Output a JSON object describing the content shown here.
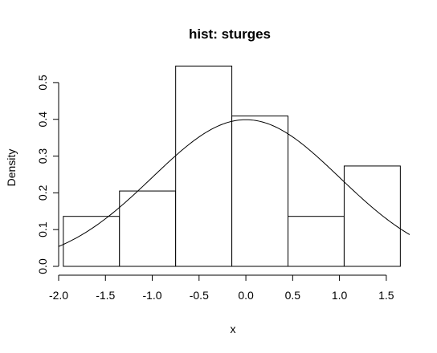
{
  "chart_data": {
    "type": "bar",
    "title": "hist: sturges",
    "xlabel": "x",
    "ylabel": "Density",
    "bins": [
      {
        "x0": -1.95,
        "x1": -1.35,
        "density": 0.136
      },
      {
        "x0": -1.35,
        "x1": -0.75,
        "density": 0.205
      },
      {
        "x0": -0.75,
        "x1": -0.15,
        "density": 0.545
      },
      {
        "x0": -0.15,
        "x1": 0.45,
        "density": 0.409
      },
      {
        "x0": 0.45,
        "x1": 1.05,
        "density": 0.136
      },
      {
        "x0": 1.05,
        "x1": 1.65,
        "density": 0.273
      }
    ],
    "overlay_curve": {
      "type": "normal density",
      "mean": 0,
      "sd": 1
    },
    "xlim": [
      -2.0,
      1.75
    ],
    "ylim": [
      0,
      0.55
    ],
    "x_ticks": [
      -2.0,
      -1.5,
      -1.0,
      -0.5,
      0.0,
      0.5,
      1.0,
      1.5
    ],
    "x_tick_labels": [
      "-2.0",
      "-1.5",
      "-1.0",
      "-0.5",
      "0.0",
      "0.5",
      "1.0",
      "1.5"
    ],
    "y_ticks": [
      0.0,
      0.1,
      0.2,
      0.3,
      0.4,
      0.5
    ],
    "y_tick_labels": [
      "0.0",
      "0.1",
      "0.2",
      "0.3",
      "0.4",
      "0.5"
    ],
    "grid": false
  }
}
